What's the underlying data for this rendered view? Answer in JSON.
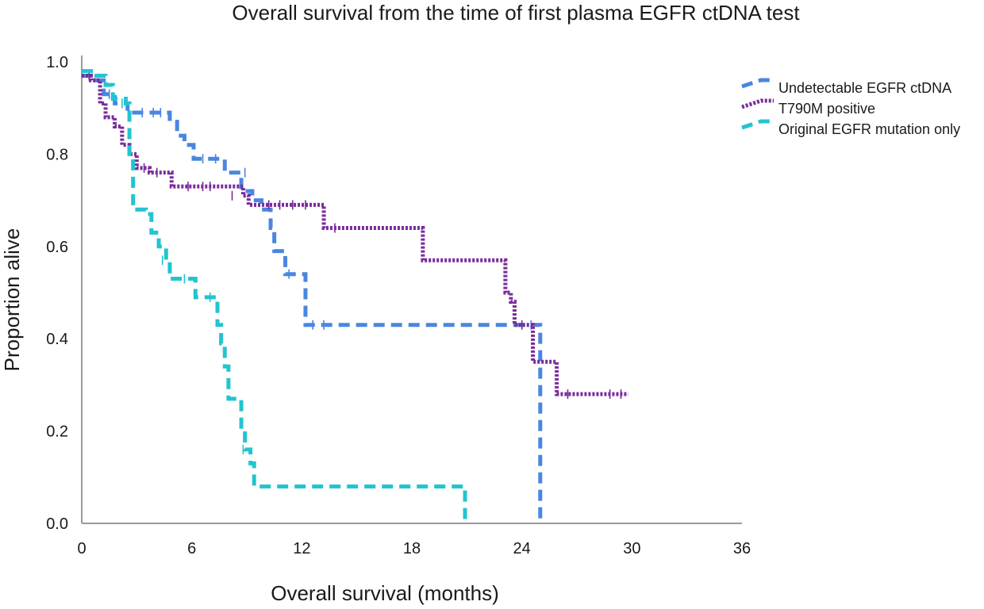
{
  "chart_data": {
    "type": "line",
    "step": true,
    "title": "Overall survival from the time of first plasma EGFR ctDNA test",
    "xlabel": "Overall survival (months)",
    "ylabel": "Proportion alive",
    "xlim": [
      0,
      36
    ],
    "ylim": [
      0,
      1.0
    ],
    "x_ticks": [
      "0",
      "6",
      "12",
      "18",
      "24",
      "30",
      "36"
    ],
    "y_ticks": [
      "0.0",
      "0.2",
      "0.4",
      "0.6",
      "0.8",
      "1.0"
    ],
    "grid": false,
    "legend_position": "top-right",
    "series": [
      {
        "name": "Undetectable EGFR ctDNA",
        "color": "#4a86e0",
        "dash": "dashed",
        "points": [
          [
            0,
            0.97
          ],
          [
            0.7,
            0.96
          ],
          [
            1.2,
            0.93
          ],
          [
            1.8,
            0.91
          ],
          [
            2.5,
            0.89
          ],
          [
            3.5,
            0.89
          ],
          [
            4.5,
            0.89
          ],
          [
            4.8,
            0.87
          ],
          [
            5.2,
            0.84
          ],
          [
            5.6,
            0.82
          ],
          [
            6.1,
            0.79
          ],
          [
            7.8,
            0.76
          ],
          [
            8.3,
            0.76
          ],
          [
            8.7,
            0.72
          ],
          [
            9.3,
            0.7
          ],
          [
            9.8,
            0.68
          ],
          [
            10.3,
            0.64
          ],
          [
            10.5,
            0.59
          ],
          [
            11.1,
            0.54
          ],
          [
            11.9,
            0.54
          ],
          [
            12.2,
            0.43
          ],
          [
            25.0,
            0.43
          ],
          [
            25.0,
            0.0
          ]
        ],
        "censored": [
          [
            1.5,
            0.93
          ],
          [
            3.3,
            0.89
          ],
          [
            3.9,
            0.89
          ],
          [
            4.3,
            0.89
          ],
          [
            6.6,
            0.79
          ],
          [
            7.3,
            0.79
          ],
          [
            8.9,
            0.76
          ],
          [
            11.3,
            0.54
          ],
          [
            12.6,
            0.43
          ],
          [
            13.2,
            0.43
          ],
          [
            24.5,
            0.43
          ]
        ]
      },
      {
        "name": "T790M positive",
        "color": "#7a2c9a",
        "dash": "dotted",
        "points": [
          [
            0,
            0.97
          ],
          [
            0.5,
            0.96
          ],
          [
            1.0,
            0.91
          ],
          [
            1.3,
            0.88
          ],
          [
            1.8,
            0.86
          ],
          [
            2.2,
            0.82
          ],
          [
            2.6,
            0.8
          ],
          [
            3.0,
            0.77
          ],
          [
            3.7,
            0.76
          ],
          [
            4.6,
            0.76
          ],
          [
            4.9,
            0.73
          ],
          [
            5.4,
            0.73
          ],
          [
            7.5,
            0.73
          ],
          [
            8.8,
            0.71
          ],
          [
            9.1,
            0.69
          ],
          [
            12.7,
            0.69
          ],
          [
            13.2,
            0.64
          ],
          [
            18.3,
            0.64
          ],
          [
            18.6,
            0.57
          ],
          [
            22.9,
            0.57
          ],
          [
            23.1,
            0.5
          ],
          [
            23.4,
            0.48
          ],
          [
            23.6,
            0.43
          ],
          [
            24.2,
            0.43
          ],
          [
            24.6,
            0.35
          ],
          [
            25.7,
            0.35
          ],
          [
            25.9,
            0.28
          ],
          [
            29.8,
            0.28
          ]
        ],
        "censored": [
          [
            0.4,
            0.97
          ],
          [
            3.4,
            0.77
          ],
          [
            4.1,
            0.76
          ],
          [
            5.8,
            0.73
          ],
          [
            6.6,
            0.73
          ],
          [
            7.0,
            0.73
          ],
          [
            8.2,
            0.71
          ],
          [
            10.2,
            0.69
          ],
          [
            10.8,
            0.69
          ],
          [
            11.5,
            0.69
          ],
          [
            12.2,
            0.69
          ],
          [
            13.8,
            0.64
          ],
          [
            24.0,
            0.43
          ],
          [
            26.5,
            0.28
          ],
          [
            28.8,
            0.28
          ],
          [
            29.4,
            0.28
          ]
        ]
      },
      {
        "name": "Original EGFR mutation only",
        "color": "#22c4d0",
        "dash": "dashed",
        "points": [
          [
            0,
            0.98
          ],
          [
            0.8,
            0.97
          ],
          [
            1.3,
            0.95
          ],
          [
            1.7,
            0.92
          ],
          [
            2.4,
            0.91
          ],
          [
            2.6,
            0.8
          ],
          [
            2.8,
            0.68
          ],
          [
            3.5,
            0.67
          ],
          [
            3.8,
            0.63
          ],
          [
            4.2,
            0.6
          ],
          [
            4.6,
            0.57
          ],
          [
            4.8,
            0.53
          ],
          [
            6.0,
            0.53
          ],
          [
            6.2,
            0.49
          ],
          [
            7.2,
            0.49
          ],
          [
            7.4,
            0.43
          ],
          [
            7.6,
            0.39
          ],
          [
            7.8,
            0.34
          ],
          [
            8.0,
            0.27
          ],
          [
            8.5,
            0.27
          ],
          [
            8.7,
            0.2
          ],
          [
            8.9,
            0.16
          ],
          [
            9.2,
            0.13
          ],
          [
            9.4,
            0.08
          ],
          [
            20.9,
            0.08
          ],
          [
            20.9,
            0.0
          ]
        ],
        "censored": [
          [
            2.2,
            0.91
          ],
          [
            4.4,
            0.57
          ],
          [
            5.6,
            0.53
          ],
          [
            7.0,
            0.49
          ],
          [
            8.8,
            0.16
          ]
        ]
      }
    ]
  }
}
